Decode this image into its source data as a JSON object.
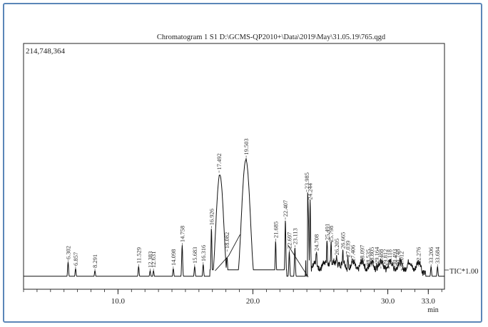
{
  "chart_data": {
    "type": "line",
    "title": "Chromatogram 1 S1 D:\\GCMS-QP2010+\\Data\\2019\\May\\31.05.19\\765.qgd",
    "y_max_label": "214,748,364",
    "x_unit": "min",
    "xlim": [
      3.0,
      34.2
    ],
    "x_ticks": [
      10.0,
      20.0,
      30.0,
      33.0
    ],
    "x_tick_labels": [
      "10.0",
      "20.0",
      "30.0",
      "33.0"
    ],
    "series_label": "TIC*1.00",
    "line_color": "#111111",
    "peaks": [
      {
        "rt": 6.302,
        "label": "6.302",
        "height": 0.07
      },
      {
        "rt": 6.857,
        "label": "6.857",
        "height": 0.04
      },
      {
        "rt": 8.291,
        "label": "8.291",
        "height": 0.03
      },
      {
        "rt": 11.529,
        "label": "11.529",
        "height": 0.05
      },
      {
        "rt": 12.383,
        "label": "12.383",
        "height": 0.03
      },
      {
        "rt": 12.631,
        "label": "12.631",
        "height": 0.03
      },
      {
        "rt": 14.098,
        "label": "14.098",
        "height": 0.04
      },
      {
        "rt": 14.758,
        "label": "14.758",
        "height": 0.15
      },
      {
        "rt": 15.683,
        "label": "15.683",
        "height": 0.05
      },
      {
        "rt": 16.316,
        "label": "16.316",
        "height": 0.06
      },
      {
        "rt": 16.926,
        "label": "16.926",
        "height": 0.23
      },
      {
        "rt": 17.492,
        "label": "17.492",
        "height": 0.49
      },
      {
        "rt": 18.082,
        "label": "18.082",
        "height": 0.12
      },
      {
        "rt": 19.503,
        "label": "19.503",
        "height": 0.56
      },
      {
        "rt": 21.685,
        "label": "21.685",
        "height": 0.17
      },
      {
        "rt": 22.407,
        "label": "22.407",
        "height": 0.27
      },
      {
        "rt": 22.697,
        "label": "22.697",
        "height": 0.12
      },
      {
        "rt": 23.113,
        "label": "23.113",
        "height": 0.14
      },
      {
        "rt": 23.985,
        "label": "23.985",
        "height": 0.4
      },
      {
        "rt": 24.244,
        "label": "24.244",
        "height": 0.35
      },
      {
        "rt": 24.708,
        "label": "24.708",
        "height": 0.11
      },
      {
        "rt": 25.491,
        "label": "25.491",
        "height": 0.16
      },
      {
        "rt": 25.798,
        "label": "25.798",
        "height": 0.15
      },
      {
        "rt": 26.205,
        "label": "26.205",
        "height": 0.09
      },
      {
        "rt": 26.665,
        "label": "26.665",
        "height": 0.12
      },
      {
        "rt": 27.039,
        "label": "27.039",
        "height": 0.08
      },
      {
        "rt": 27.406,
        "label": "27.406",
        "height": 0.06
      },
      {
        "rt": 28.097,
        "label": "28.097",
        "height": 0.06
      },
      {
        "rt": 28.535,
        "label": "28.535",
        "height": 0.04
      },
      {
        "rt": 28.805,
        "label": "28.805",
        "height": 0.05
      },
      {
        "rt": 29.164,
        "label": "29.164",
        "height": 0.05
      },
      {
        "rt": 29.488,
        "label": "29.488",
        "height": 0.04
      },
      {
        "rt": 29.812,
        "label": "29.812",
        "height": 0.04
      },
      {
        "rt": 30.118,
        "label": "30.118",
        "height": 0.04
      },
      {
        "rt": 30.493,
        "label": "30.493",
        "height": 0.04
      },
      {
        "rt": 30.748,
        "label": "30.748",
        "height": 0.04
      },
      {
        "rt": 31.012,
        "label": "31.012",
        "height": 0.03
      },
      {
        "rt": 32.276,
        "label": "32.276",
        "height": 0.05
      },
      {
        "rt": 33.206,
        "label": "33.206",
        "height": 0.05
      },
      {
        "rt": 33.684,
        "label": "33.684",
        "height": 0.05
      }
    ],
    "baseline_segments": [
      [
        17.2,
        18.2
      ],
      [
        18.2,
        19.05
      ],
      [
        22.6,
        24.1
      ]
    ]
  }
}
